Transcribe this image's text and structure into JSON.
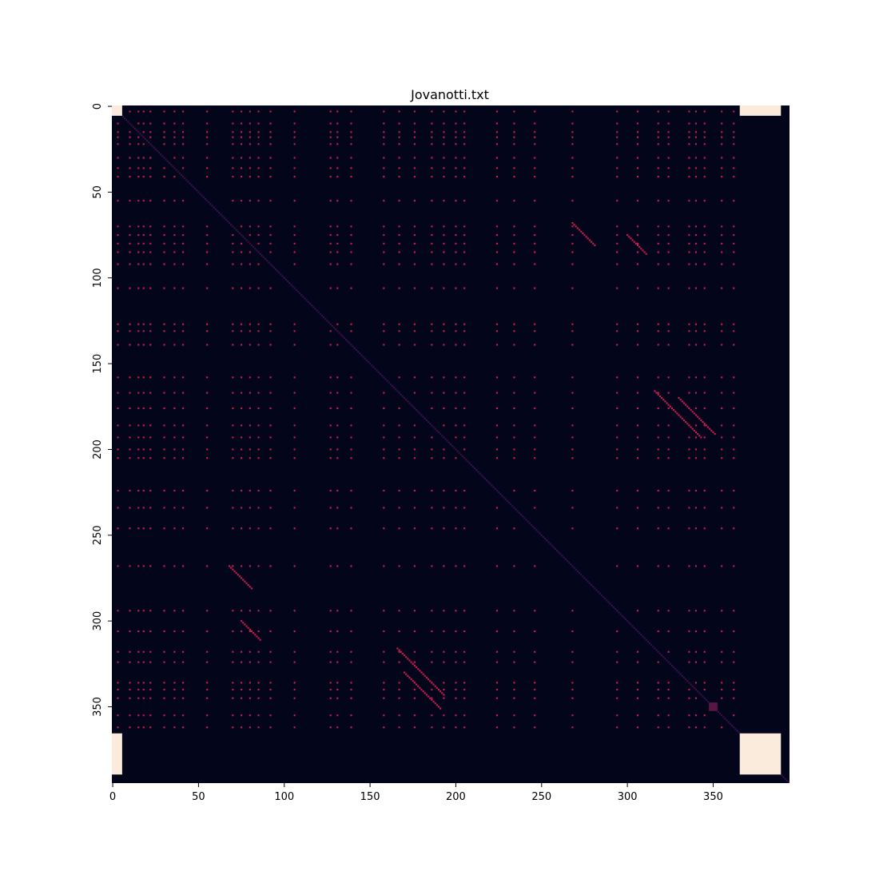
{
  "chart_data": {
    "type": "heatmap",
    "title": "Jovanotti.txt",
    "xlabel": "",
    "ylabel": "",
    "n": 395,
    "xlim": [
      0,
      395
    ],
    "ylim": [
      395,
      0
    ],
    "x_ticks": [
      "0",
      "50",
      "100",
      "150",
      "200",
      "250",
      "300",
      "350"
    ],
    "y_ticks": [
      "0",
      "50",
      "100",
      "150",
      "200",
      "250",
      "300",
      "350"
    ],
    "grid": false,
    "colorbar": false,
    "colors": {
      "background": "#03051a",
      "match": "#cb1b4f",
      "diagonal": "#3b0f4a",
      "block": "#faebdd",
      "dim": "#5a1446"
    },
    "solid_blocks": [
      {
        "rows": [
          0,
          6
        ],
        "cols": [
          0,
          6
        ]
      },
      {
        "rows": [
          0,
          6
        ],
        "cols": [
          366,
          390
        ]
      },
      {
        "rows": [
          366,
          390
        ],
        "cols": [
          0,
          6
        ]
      },
      {
        "rows": [
          366,
          390
        ],
        "cols": [
          366,
          390
        ]
      }
    ],
    "dark_block": {
      "rows": [
        348,
        353
      ],
      "cols": [
        348,
        353
      ]
    },
    "repeated_token_indices": [
      3,
      10,
      15,
      18,
      22,
      30,
      36,
      41,
      55,
      70,
      75,
      80,
      85,
      92,
      106,
      127,
      131,
      139,
      158,
      167,
      176,
      186,
      193,
      200,
      205,
      224,
      234,
      246,
      268,
      294,
      306,
      318,
      324,
      336,
      340,
      345,
      355,
      362
    ],
    "diagonal_runs": [
      {
        "start": [
          166,
          316
        ],
        "length": 28
      },
      {
        "start": [
          316,
          166
        ],
        "length": 28
      },
      {
        "start": [
          170,
          330
        ],
        "length": 22
      },
      {
        "start": [
          330,
          170
        ],
        "length": 22
      },
      {
        "start": [
          68,
          268
        ],
        "length": 14
      },
      {
        "start": [
          268,
          68
        ],
        "length": 14
      },
      {
        "start": [
          75,
          300
        ],
        "length": 12
      },
      {
        "start": [
          300,
          75
        ],
        "length": 12
      }
    ]
  }
}
